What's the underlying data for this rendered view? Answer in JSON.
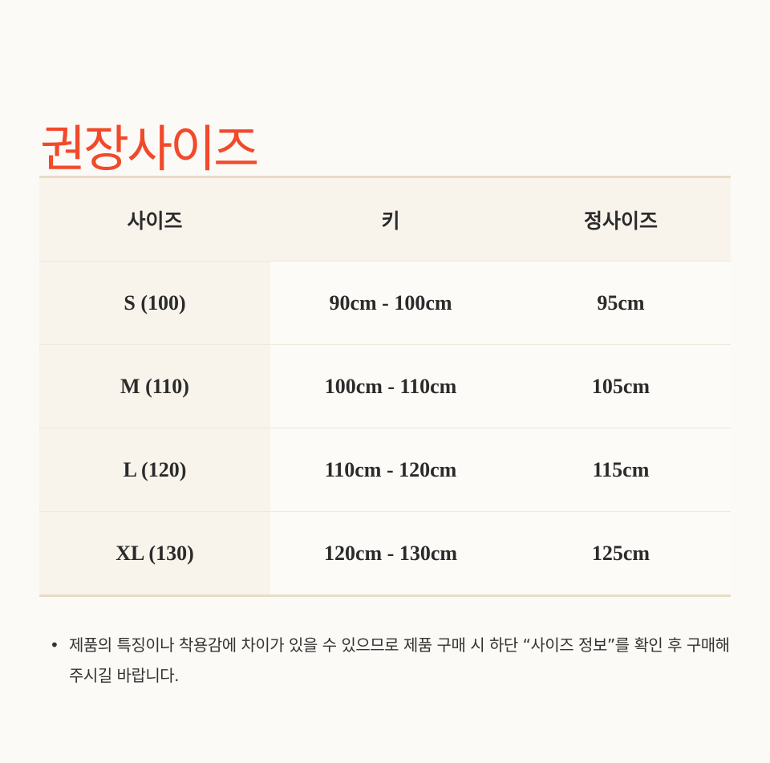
{
  "title": "권장사이즈",
  "table": {
    "headers": [
      "사이즈",
      "키",
      "정사이즈"
    ],
    "rows": [
      [
        "S (100)",
        "90cm - 100cm",
        "95cm"
      ],
      [
        "M (110)",
        "100cm - 110cm",
        "105cm"
      ],
      [
        "L (120)",
        "110cm - 120cm",
        "115cm"
      ],
      [
        "XL (130)",
        "120cm - 130cm",
        "125cm"
      ]
    ]
  },
  "note": {
    "bullet": "•",
    "text": "제품의 특징이나 착용감에 차이가 있을 수 있으므로 제품 구매 시 하단 “사이즈 정보”를 확인 후 구매해 주시길 바랍니다."
  },
  "colors": {
    "accent": "#f2492b",
    "header_bg": "#f8f4ec",
    "border": "#e8dcc6"
  }
}
